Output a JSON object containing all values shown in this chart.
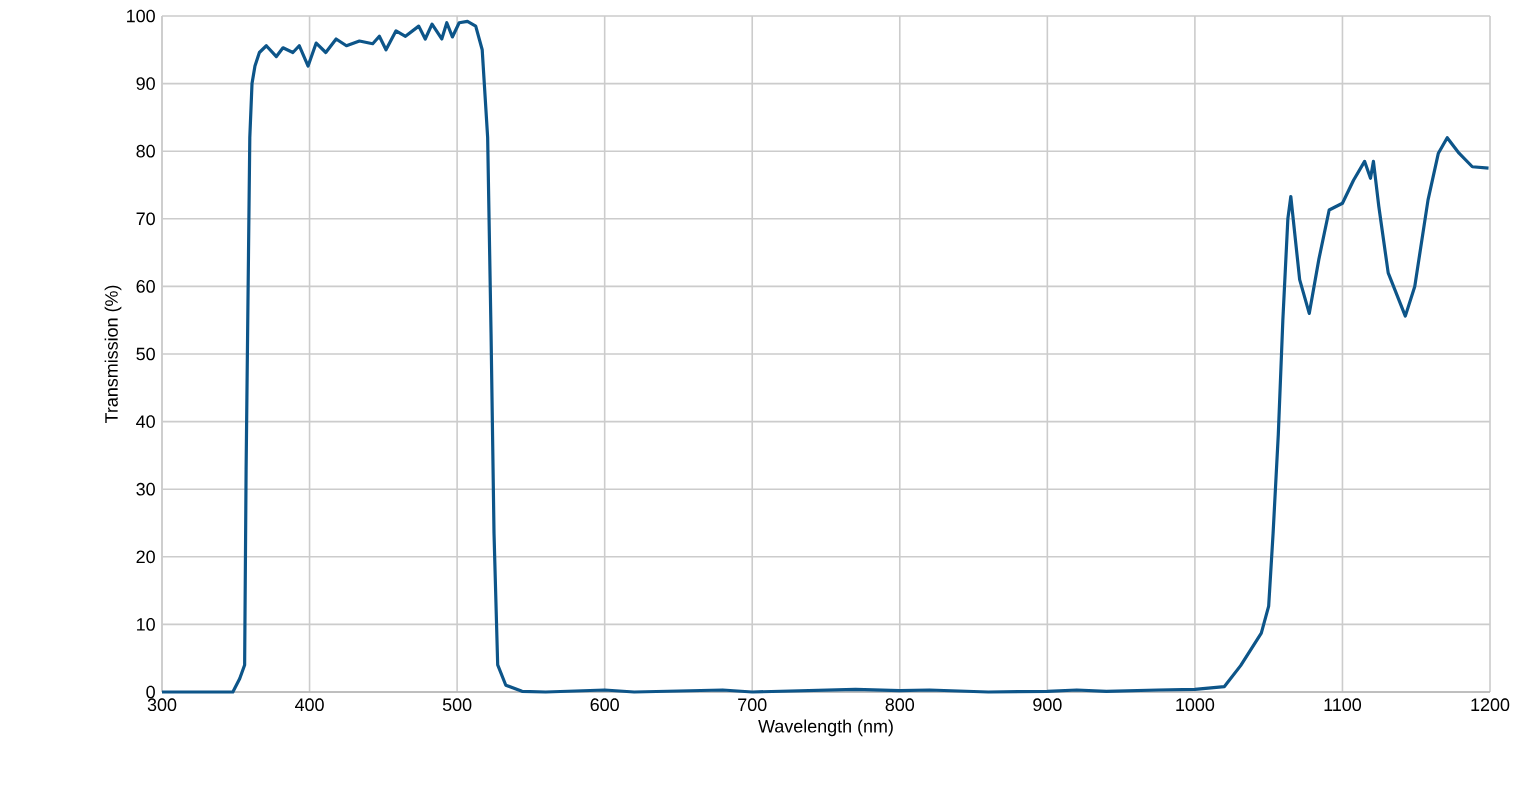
{
  "chart_data": {
    "type": "line",
    "xlabel": "Wavelength (nm)",
    "ylabel": "Transmission (%)",
    "xlim": [
      300,
      1200
    ],
    "ylim": [
      0,
      100
    ],
    "xticks": [
      300,
      400,
      500,
      600,
      700,
      800,
      900,
      1000,
      1100,
      1200
    ],
    "yticks": [
      0,
      10,
      20,
      30,
      40,
      50,
      60,
      70,
      80,
      90,
      100
    ],
    "grid": true,
    "marker": "none",
    "line_style": "solid",
    "series": [
      {
        "color": "#0d5589",
        "x": [
          300,
          328,
          348,
          352.7,
          356,
          357,
          359.5,
          361,
          363,
          366,
          370.7,
          377.5,
          382,
          388.7,
          393,
          399,
          404.5,
          411,
          418,
          425,
          433.8,
          442.8,
          447.3,
          451.8,
          458.6,
          465,
          474,
          478.4,
          483,
          489.6,
          493,
          496.8,
          501.4,
          507,
          512.6,
          517,
          520.7,
          523,
          525,
          527.5,
          533,
          544,
          560,
          600,
          620,
          680,
          700,
          770,
          800,
          820,
          860,
          900,
          920,
          940,
          975,
          1000,
          1020,
          1031,
          1045,
          1050,
          1053,
          1056.5,
          1059.6,
          1063,
          1065,
          1071,
          1077.5,
          1084,
          1091,
          1100,
          1107.5,
          1115,
          1119,
          1121,
          1124.6,
          1131,
          1142.6,
          1149,
          1158,
          1165,
          1171,
          1179,
          1188,
          1199
        ],
        "values": [
          0,
          0,
          0,
          2,
          4,
          33,
          82,
          90,
          92.6,
          94.6,
          95.6,
          94,
          95.3,
          94.6,
          95.6,
          92.6,
          96,
          94.6,
          96.6,
          95.6,
          96.3,
          95.9,
          97,
          95,
          97.8,
          97,
          98.5,
          96.6,
          98.8,
          96.6,
          99,
          96.9,
          99,
          99.2,
          98.5,
          95,
          82,
          53,
          23.5,
          4,
          1,
          0.1,
          0,
          0.3,
          0,
          0.3,
          0,
          0.4,
          0.2,
          0.3,
          0,
          0.1,
          0.3,
          0.1,
          0.3,
          0.4,
          0.8,
          3.9,
          8.7,
          12.7,
          23.5,
          38,
          55,
          70,
          73.3,
          61,
          56,
          64,
          71.3,
          72.3,
          75.7,
          78.5,
          76,
          78.5,
          71.9,
          62,
          55.6,
          60,
          72.8,
          79.7,
          82,
          79.7,
          77.7,
          77.5
        ]
      }
    ]
  }
}
